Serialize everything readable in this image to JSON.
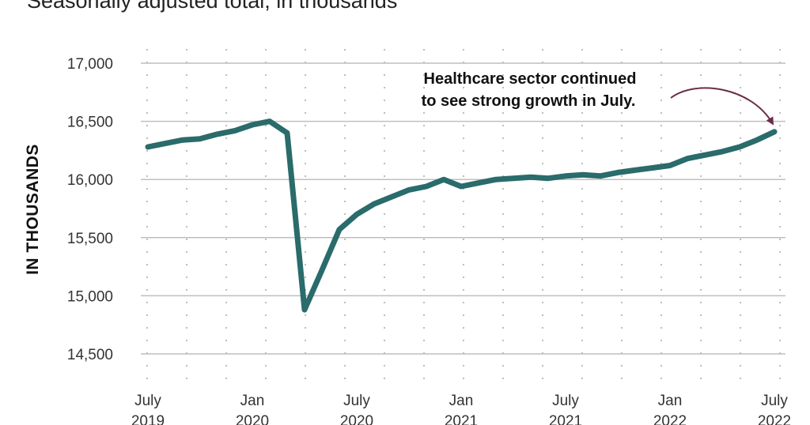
{
  "subtitle": "Seasonally adjusted total, in thousands",
  "chart_data": {
    "type": "line",
    "title": "",
    "subtitle": "Seasonally adjusted total, in thousands",
    "ylabel": "IN THOUSANDS",
    "xlabel": "",
    "ylim": [
      14500,
      17000
    ],
    "yticks": [
      14500,
      15000,
      15500,
      16000,
      16500,
      17000
    ],
    "ytick_labels": [
      "14,500",
      "15,000",
      "15,500",
      "16,000",
      "16,500",
      "17,000"
    ],
    "xticks": [
      {
        "month": 0,
        "label": [
          "July",
          "2019"
        ]
      },
      {
        "month": 6,
        "label": [
          "Jan",
          "2020"
        ]
      },
      {
        "month": 12,
        "label": [
          "July",
          "2020"
        ]
      },
      {
        "month": 18,
        "label": [
          "Jan",
          "2021"
        ]
      },
      {
        "month": 24,
        "label": [
          "July",
          "2021"
        ]
      },
      {
        "month": 30,
        "label": [
          "Jan",
          "2022"
        ]
      },
      {
        "month": 36,
        "label": [
          "July",
          "2022"
        ]
      }
    ],
    "grid": true,
    "color": "#2a6b6b",
    "annotation_color": "#6b2d4a",
    "series": [
      {
        "name": "",
        "start": "July 2019",
        "values": [
          16280,
          16310,
          16340,
          16350,
          16390,
          16420,
          16470,
          16500,
          16400,
          14880,
          15220,
          15570,
          15700,
          15790,
          15850,
          15910,
          15940,
          16000,
          15940,
          15970,
          16000,
          16010,
          16020,
          16010,
          16030,
          16040,
          16030,
          16060,
          16080,
          16100,
          16120,
          16180,
          16210,
          16240,
          16280,
          16340,
          16410
        ]
      }
    ],
    "annotations": [
      {
        "text_lines": [
          "Healthcare sector continued",
          "to see strong growth in July."
        ],
        "points_to": "July 2022"
      }
    ]
  }
}
